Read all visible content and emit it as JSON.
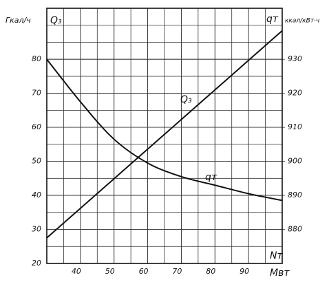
{
  "chart_data": {
    "type": "line",
    "y_label": "Гкал/ч",
    "y_label_symbol": "Q₃",
    "y2_label": "ккал/кВт·ч",
    "y2_label_symbol": "qт",
    "x_label": "Nт",
    "x_unit": "Мвт",
    "x": [
      30,
      40,
      50,
      60,
      70,
      80,
      90,
      100
    ],
    "series": [
      {
        "name": "Q₃",
        "color": "#111111",
        "values": [
          27.5,
          36.2,
          44.9,
          53.6,
          62.3,
          71,
          79.7,
          88.4
        ]
      },
      {
        "name": "qт",
        "color": "#111111",
        "axis": "y2",
        "values": [
          930,
          917.5,
          906.5,
          899.5,
          895.5,
          893,
          890.5,
          888.5
        ]
      }
    ],
    "xlim": [
      30,
      100
    ],
    "xticks": [
      40,
      50,
      60,
      70,
      80,
      90
    ],
    "ylim": [
      20,
      95
    ],
    "yticks": [
      20,
      30,
      40,
      50,
      60,
      70,
      80
    ],
    "y2lim": [
      870,
      945
    ],
    "y2ticks": [
      880,
      890,
      900,
      910,
      920,
      930
    ],
    "grid": true
  }
}
